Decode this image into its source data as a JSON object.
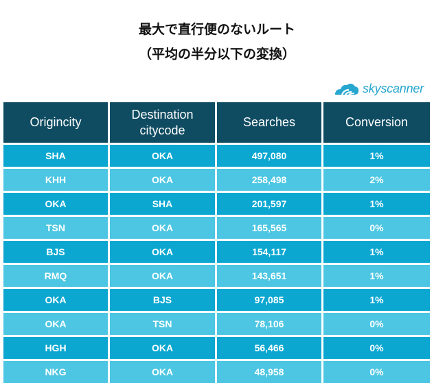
{
  "title": {
    "line1": "最大で直行便のないルート",
    "line2": "（平均の半分以下の変換）"
  },
  "brand": {
    "name": "skyscanner",
    "color": "#27a6cf"
  },
  "colors": {
    "header_bg": "#0f4c62",
    "row_dark": "#0ba7d1",
    "row_light": "#4cc6e2"
  },
  "table": {
    "headers": [
      "Origincity",
      "Destination citycode",
      "Searches",
      "Conversion"
    ],
    "rows": [
      [
        "SHA",
        "OKA",
        "497,080",
        "1%"
      ],
      [
        "KHH",
        "OKA",
        "258,498",
        "2%"
      ],
      [
        "OKA",
        "SHA",
        "201,597",
        "1%"
      ],
      [
        "TSN",
        "OKA",
        "165,565",
        "0%"
      ],
      [
        "BJS",
        "OKA",
        "154,117",
        "1%"
      ],
      [
        "RMQ",
        "OKA",
        "143,651",
        "1%"
      ],
      [
        "OKA",
        "BJS",
        "97,085",
        "1%"
      ],
      [
        "OKA",
        "TSN",
        "78,106",
        "0%"
      ],
      [
        "HGH",
        "OKA",
        "56,466",
        "0%"
      ],
      [
        "NKG",
        "OKA",
        "48,958",
        "0%"
      ]
    ]
  }
}
